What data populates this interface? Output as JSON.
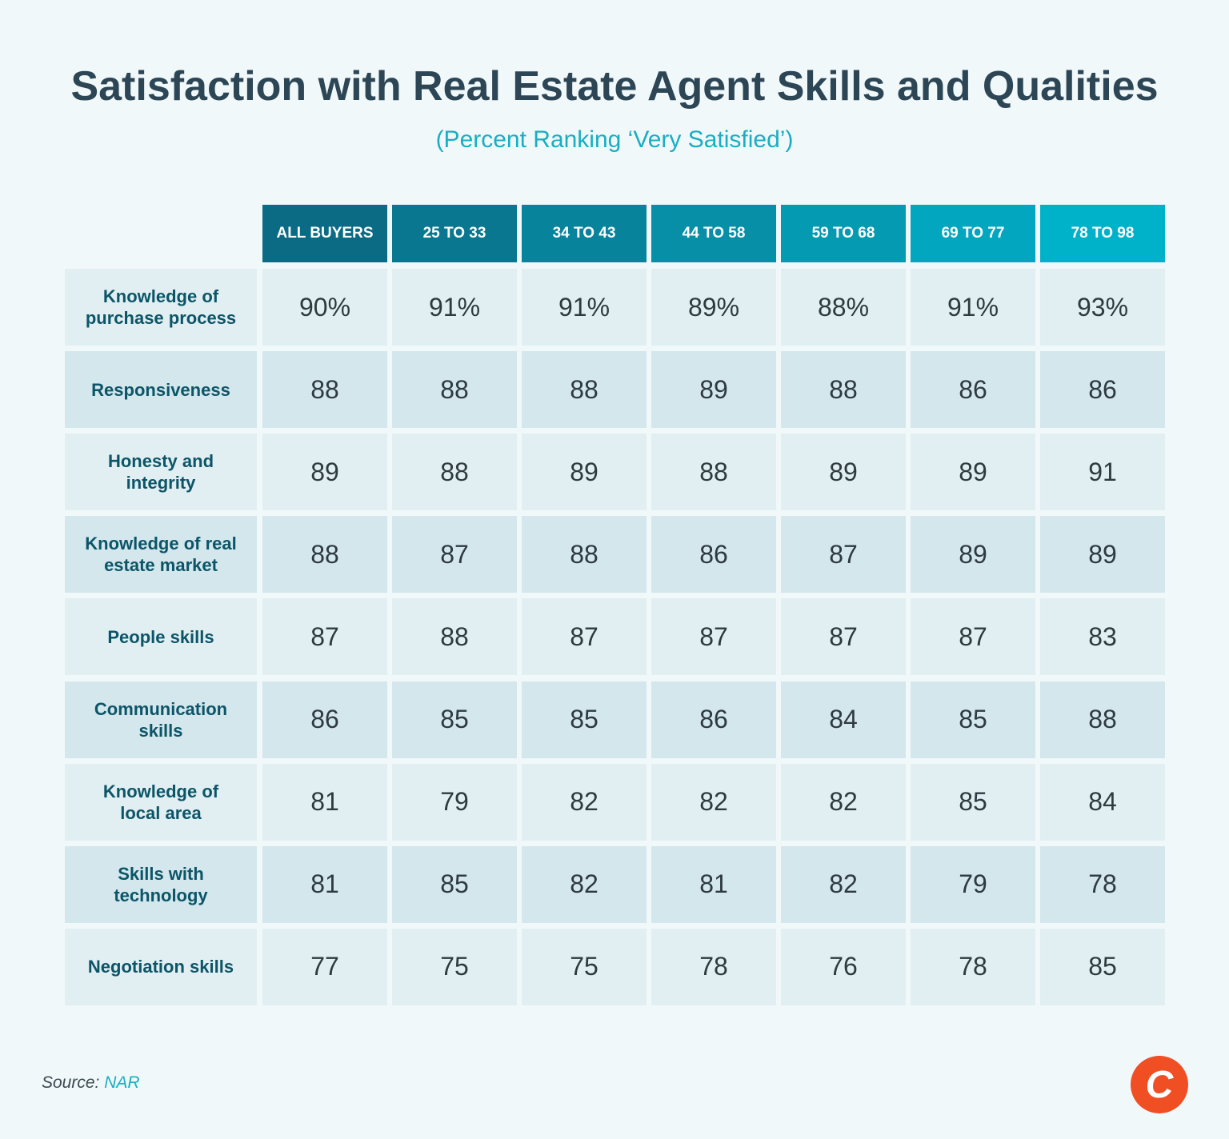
{
  "title": "Satisfaction with Real Estate Agent Skills and Qualities",
  "subtitle": "(Percent Ranking ‘Very Satisfied’)",
  "table": {
    "columns": [
      "ALL BUYERS",
      "25 TO 33",
      "34 TO 43",
      "44 TO 58",
      "59 TO 68",
      "69 TO 77",
      "78 TO 98"
    ],
    "rows": [
      {
        "label": "Knowledge of purchase process",
        "cells": [
          "90%",
          "91%",
          "91%",
          "89%",
          "88%",
          "91%",
          "93%"
        ]
      },
      {
        "label": "Responsiveness",
        "cells": [
          "88",
          "88",
          "88",
          "89",
          "88",
          "86",
          "86"
        ]
      },
      {
        "label": "Honesty and integrity",
        "cells": [
          "89",
          "88",
          "89",
          "88",
          "89",
          "89",
          "91"
        ]
      },
      {
        "label": "Knowledge of real estate market",
        "cells": [
          "88",
          "87",
          "88",
          "86",
          "87",
          "89",
          "89"
        ]
      },
      {
        "label": "People skills",
        "cells": [
          "87",
          "88",
          "87",
          "87",
          "87",
          "87",
          "83"
        ]
      },
      {
        "label": "Communication skills",
        "cells": [
          "86",
          "85",
          "85",
          "86",
          "84",
          "85",
          "88"
        ]
      },
      {
        "label": "Knowledge of local area",
        "cells": [
          "81",
          "79",
          "82",
          "82",
          "82",
          "85",
          "84"
        ]
      },
      {
        "label": "Skills with technology",
        "cells": [
          "81",
          "85",
          "82",
          "81",
          "82",
          "79",
          "78"
        ]
      },
      {
        "label": "Negotiation skills",
        "cells": [
          "77",
          "75",
          "75",
          "78",
          "76",
          "78",
          "85"
        ]
      }
    ]
  },
  "footer": {
    "source_label": "Source:",
    "source": "NAR",
    "logo": "C"
  }
}
